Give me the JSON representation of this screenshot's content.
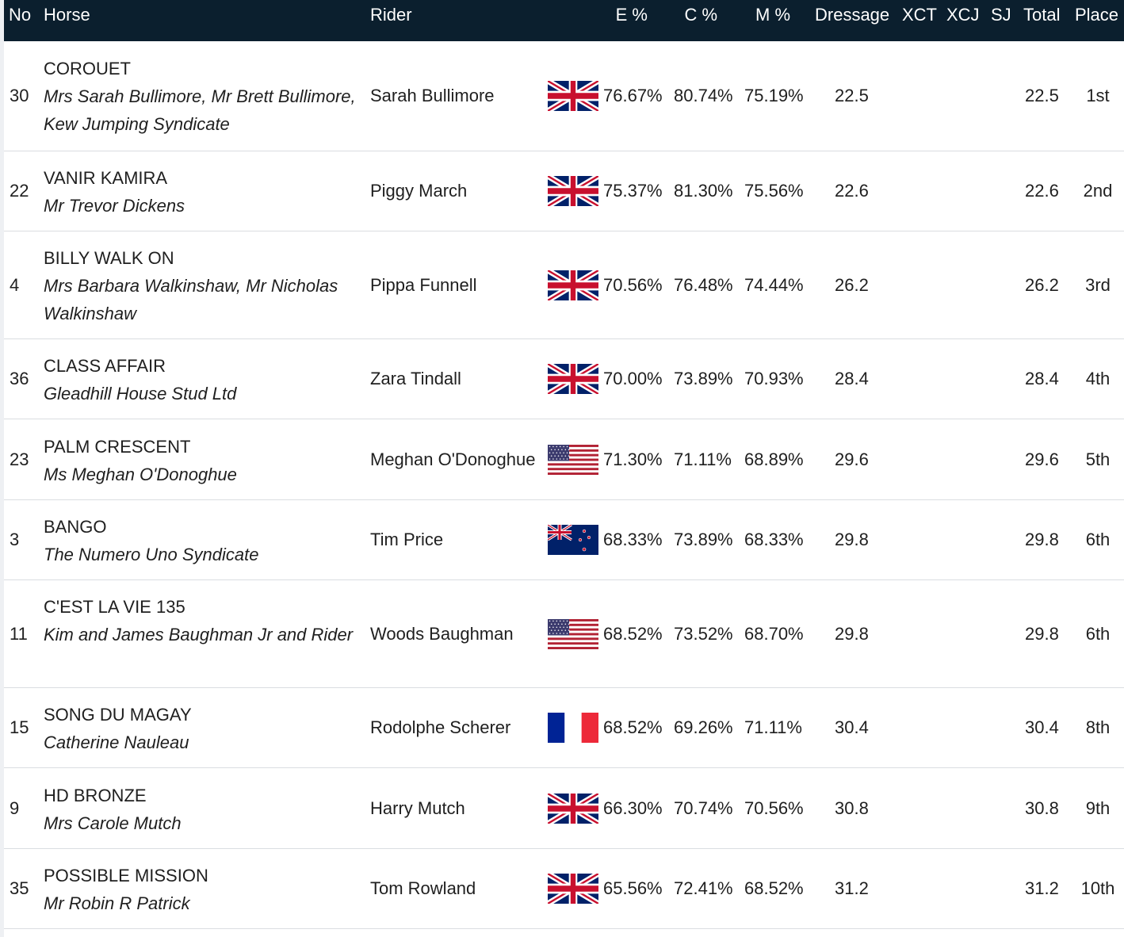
{
  "columns": {
    "no": "No",
    "horse": "Horse",
    "rider": "Rider",
    "e": "E %",
    "c": "C %",
    "m": "M %",
    "dressage": "Dressage",
    "xct": "XCT",
    "xcj": "XCJ",
    "sj": "SJ",
    "total": "Total",
    "place": "Place"
  },
  "rows": [
    {
      "no": "30",
      "horse": "COROUET",
      "owner": "Mrs Sarah Bullimore, Mr Brett Bullimore, Kew Jumping Syndicate",
      "rider": "Sarah Bullimore",
      "flag": "gb-flag-icon",
      "e": "76.67%",
      "c": "80.74%",
      "m": "75.19%",
      "dressage": "22.5",
      "total": "22.5",
      "place": "1st"
    },
    {
      "no": "22",
      "horse": "VANIR KAMIRA",
      "owner": "Mr Trevor Dickens",
      "rider": "Piggy March",
      "flag": "gb-flag-icon",
      "e": "75.37%",
      "c": "81.30%",
      "m": "75.56%",
      "dressage": "22.6",
      "total": "22.6",
      "place": "2nd"
    },
    {
      "no": "4",
      "horse": "BILLY WALK ON",
      "owner": "Mrs Barbara Walkinshaw, Mr Nicholas Walkinshaw",
      "rider": "Pippa Funnell",
      "flag": "gb-flag-icon",
      "e": "70.56%",
      "c": "76.48%",
      "m": "74.44%",
      "dressage": "26.2",
      "total": "26.2",
      "place": "3rd"
    },
    {
      "no": "36",
      "horse": "CLASS AFFAIR",
      "owner": "Gleadhill House Stud Ltd",
      "rider": "Zara Tindall",
      "flag": "gb-flag-icon",
      "e": "70.00%",
      "c": "73.89%",
      "m": "70.93%",
      "dressage": "28.4",
      "total": "28.4",
      "place": "4th"
    },
    {
      "no": "23",
      "horse": "PALM CRESCENT",
      "owner": "Ms Meghan O'Donoghue",
      "rider": "Meghan O'Donoghue",
      "flag": "us-flag-icon",
      "e": "71.30%",
      "c": "71.11%",
      "m": "68.89%",
      "dressage": "29.6",
      "total": "29.6",
      "place": "5th"
    },
    {
      "no": "3",
      "horse": "BANGO",
      "owner": "The Numero Uno Syndicate",
      "rider": "Tim Price",
      "flag": "nz-flag-icon",
      "e": "68.33%",
      "c": "73.89%",
      "m": "68.33%",
      "dressage": "29.8",
      "total": "29.8",
      "place": "6th"
    },
    {
      "no": "11",
      "horse": "C'EST LA VIE 135",
      "owner": "Kim and James Baughman Jr and Rider",
      "rider": "Woods Baughman",
      "flag": "us-flag-icon",
      "e": "68.52%",
      "c": "73.52%",
      "m": "68.70%",
      "dressage": "29.8",
      "total": "29.8",
      "place": "6th"
    },
    {
      "no": "15",
      "horse": "SONG DU MAGAY",
      "owner": "Catherine Nauleau",
      "rider": "Rodolphe Scherer",
      "flag": "fr-flag-icon",
      "e": "68.52%",
      "c": "69.26%",
      "m": "71.11%",
      "dressage": "30.4",
      "total": "30.4",
      "place": "8th"
    },
    {
      "no": "9",
      "horse": "HD BRONZE",
      "owner": "Mrs Carole Mutch",
      "rider": "Harry Mutch",
      "flag": "gb-flag-icon",
      "e": "66.30%",
      "c": "70.74%",
      "m": "70.56%",
      "dressage": "30.8",
      "total": "30.8",
      "place": "9th"
    },
    {
      "no": "35",
      "horse": "POSSIBLE MISSION",
      "owner": "Mr Robin R Patrick",
      "rider": "Tom Rowland",
      "flag": "gb-flag-icon",
      "e": "65.56%",
      "c": "72.41%",
      "m": "68.52%",
      "dressage": "31.2",
      "total": "31.2",
      "place": "10th"
    }
  ]
}
